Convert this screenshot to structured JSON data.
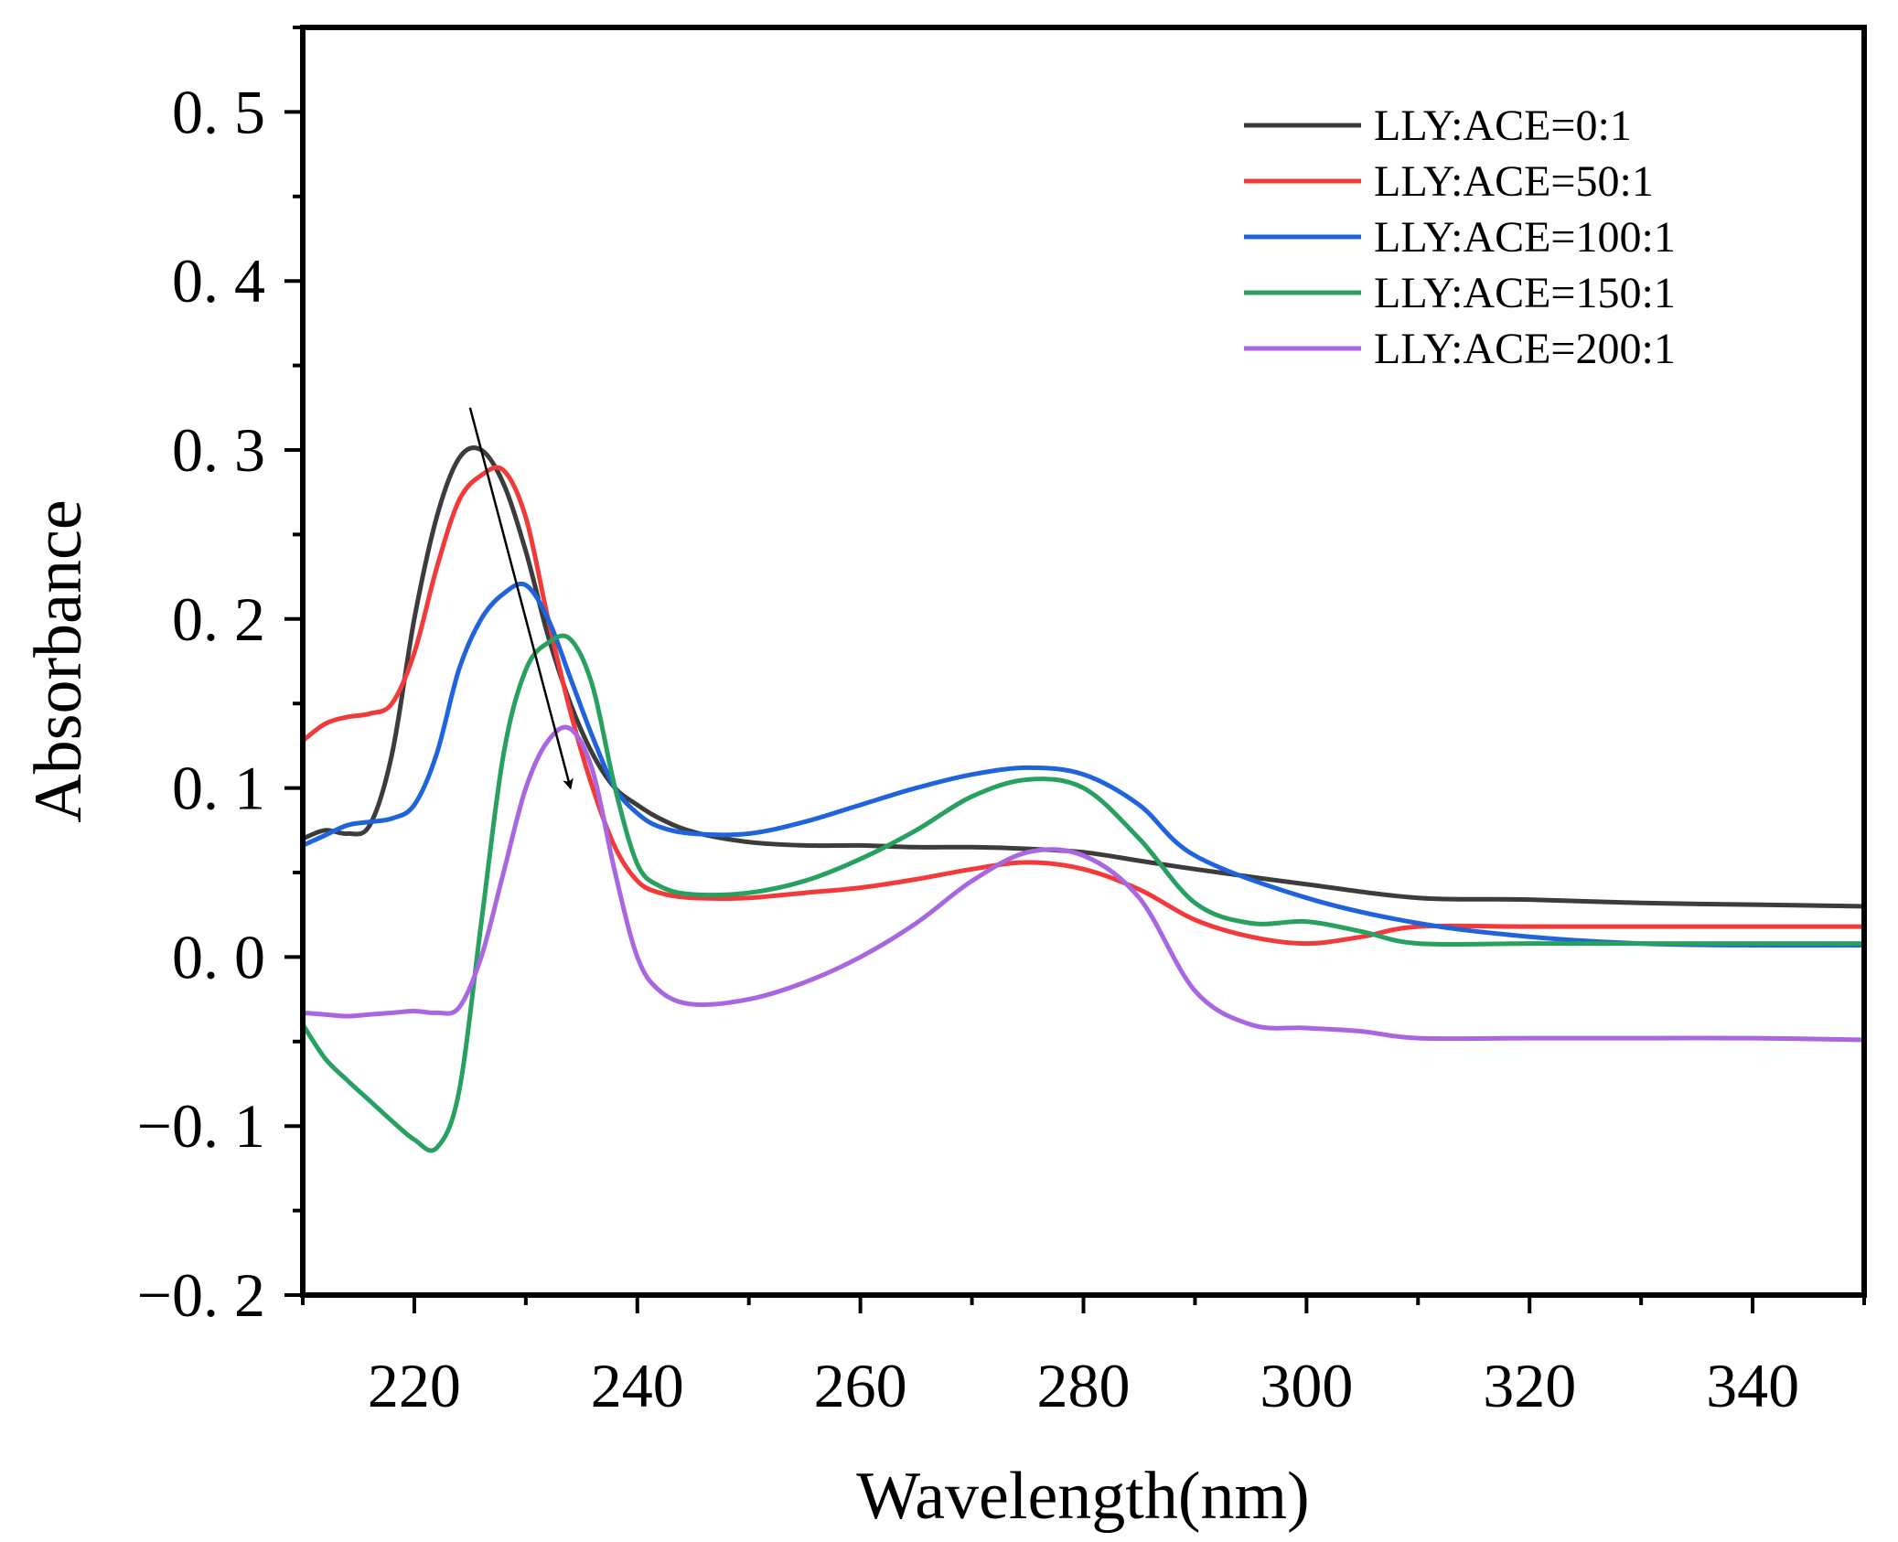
{
  "chart_data": {
    "type": "line",
    "title": "",
    "xlabel": "Wavelength(nm)",
    "ylabel": "Absorbance",
    "xlim": [
      210,
      350
    ],
    "ylim": [
      -0.2,
      0.55
    ],
    "xticks": [
      220,
      240,
      260,
      280,
      300,
      320,
      340
    ],
    "xtick_labels": [
      "220",
      "240",
      "260",
      "280",
      "300",
      "320",
      "340"
    ],
    "yticks": [
      -0.2,
      -0.1,
      0.0,
      0.1,
      0.2,
      0.3,
      0.4,
      0.5
    ],
    "ytick_labels": [
      "−0. 2",
      "−0. 1",
      "0. 0",
      "0. 1",
      "0. 2",
      "0. 3",
      "0. 4",
      "0. 5"
    ],
    "grid": false,
    "legend_position": "top-right",
    "annotation": {
      "type": "arrow",
      "from": [
        225,
        0.325
      ],
      "to": [
        234,
        0.1
      ]
    },
    "series": [
      {
        "name": "LLY:ACE=0:1",
        "color": "#3c3c3c",
        "x": [
          210,
          212,
          214,
          216,
          218,
          220,
          222,
          224,
          226,
          228,
          230,
          232,
          234,
          236,
          238,
          240,
          242,
          245,
          250,
          255,
          260,
          265,
          270,
          275,
          280,
          285,
          290,
          300,
          310,
          320,
          330,
          340,
          350
        ],
        "y": [
          0.07,
          0.075,
          0.073,
          0.078,
          0.12,
          0.2,
          0.26,
          0.295,
          0.3,
          0.28,
          0.24,
          0.19,
          0.15,
          0.12,
          0.1,
          0.09,
          0.082,
          0.074,
          0.068,
          0.066,
          0.066,
          0.065,
          0.065,
          0.064,
          0.062,
          0.057,
          0.052,
          0.043,
          0.035,
          0.034,
          0.032,
          0.031,
          0.03
        ]
      },
      {
        "name": "LLY:ACE=50:1",
        "color": "#f23a3a",
        "x": [
          210,
          212,
          214,
          216,
          218,
          220,
          222,
          224,
          226,
          228,
          230,
          232,
          234,
          236,
          238,
          240,
          242,
          245,
          250,
          255,
          260,
          265,
          270,
          275,
          280,
          285,
          290,
          295,
          300,
          305,
          310,
          320,
          330,
          340,
          350
        ],
        "y": [
          0.128,
          0.138,
          0.142,
          0.144,
          0.15,
          0.18,
          0.23,
          0.27,
          0.285,
          0.288,
          0.26,
          0.2,
          0.145,
          0.1,
          0.065,
          0.045,
          0.038,
          0.035,
          0.035,
          0.038,
          0.041,
          0.046,
          0.052,
          0.056,
          0.052,
          0.04,
          0.022,
          0.012,
          0.008,
          0.012,
          0.018,
          0.018,
          0.018,
          0.018,
          0.018
        ]
      },
      {
        "name": "LLY:ACE=100:1",
        "color": "#1f64dc",
        "x": [
          210,
          212,
          214,
          216,
          218,
          220,
          222,
          224,
          226,
          228,
          230,
          232,
          234,
          236,
          238,
          240,
          242,
          245,
          250,
          255,
          260,
          265,
          270,
          275,
          280,
          285,
          290,
          300,
          310,
          320,
          330,
          340,
          350
        ],
        "y": [
          0.066,
          0.072,
          0.078,
          0.08,
          0.082,
          0.09,
          0.12,
          0.17,
          0.2,
          0.215,
          0.22,
          0.2,
          0.165,
          0.13,
          0.1,
          0.085,
          0.077,
          0.073,
          0.073,
          0.08,
          0.09,
          0.1,
          0.108,
          0.112,
          0.108,
          0.09,
          0.06,
          0.035,
          0.02,
          0.012,
          0.008,
          0.007,
          0.007
        ]
      },
      {
        "name": "LLY:ACE=150:1",
        "color": "#27a060",
        "x": [
          210,
          212,
          214,
          216,
          218,
          220,
          222,
          224,
          226,
          228,
          230,
          232,
          234,
          236,
          238,
          240,
          242,
          245,
          250,
          255,
          260,
          265,
          270,
          275,
          280,
          285,
          290,
          295,
          300,
          305,
          310,
          320,
          330,
          340,
          350
        ],
        "y": [
          -0.04,
          -0.06,
          -0.073,
          -0.085,
          -0.097,
          -0.108,
          -0.113,
          -0.08,
          0.02,
          0.12,
          0.17,
          0.186,
          0.188,
          0.16,
          0.1,
          0.055,
          0.042,
          0.037,
          0.038,
          0.045,
          0.058,
          0.075,
          0.095,
          0.105,
          0.1,
          0.07,
          0.032,
          0.02,
          0.021,
          0.015,
          0.008,
          0.008,
          0.008,
          0.008,
          0.008
        ]
      },
      {
        "name": "LLY:ACE=200:1",
        "color": "#a866e0",
        "x": [
          210,
          212,
          214,
          216,
          218,
          220,
          222,
          224,
          226,
          228,
          230,
          232,
          234,
          236,
          238,
          240,
          242,
          245,
          250,
          255,
          260,
          265,
          270,
          275,
          280,
          285,
          290,
          295,
          300,
          305,
          310,
          320,
          330,
          340,
          350
        ],
        "y": [
          -0.033,
          -0.034,
          -0.035,
          -0.034,
          -0.033,
          -0.032,
          -0.033,
          -0.03,
          0.0,
          0.05,
          0.1,
          0.128,
          0.135,
          0.11,
          0.05,
          0.0,
          -0.02,
          -0.028,
          -0.025,
          -0.015,
          0.0,
          0.02,
          0.045,
          0.062,
          0.06,
          0.035,
          -0.02,
          -0.04,
          -0.042,
          -0.044,
          -0.048,
          -0.048,
          -0.048,
          -0.048,
          -0.049
        ]
      }
    ]
  }
}
